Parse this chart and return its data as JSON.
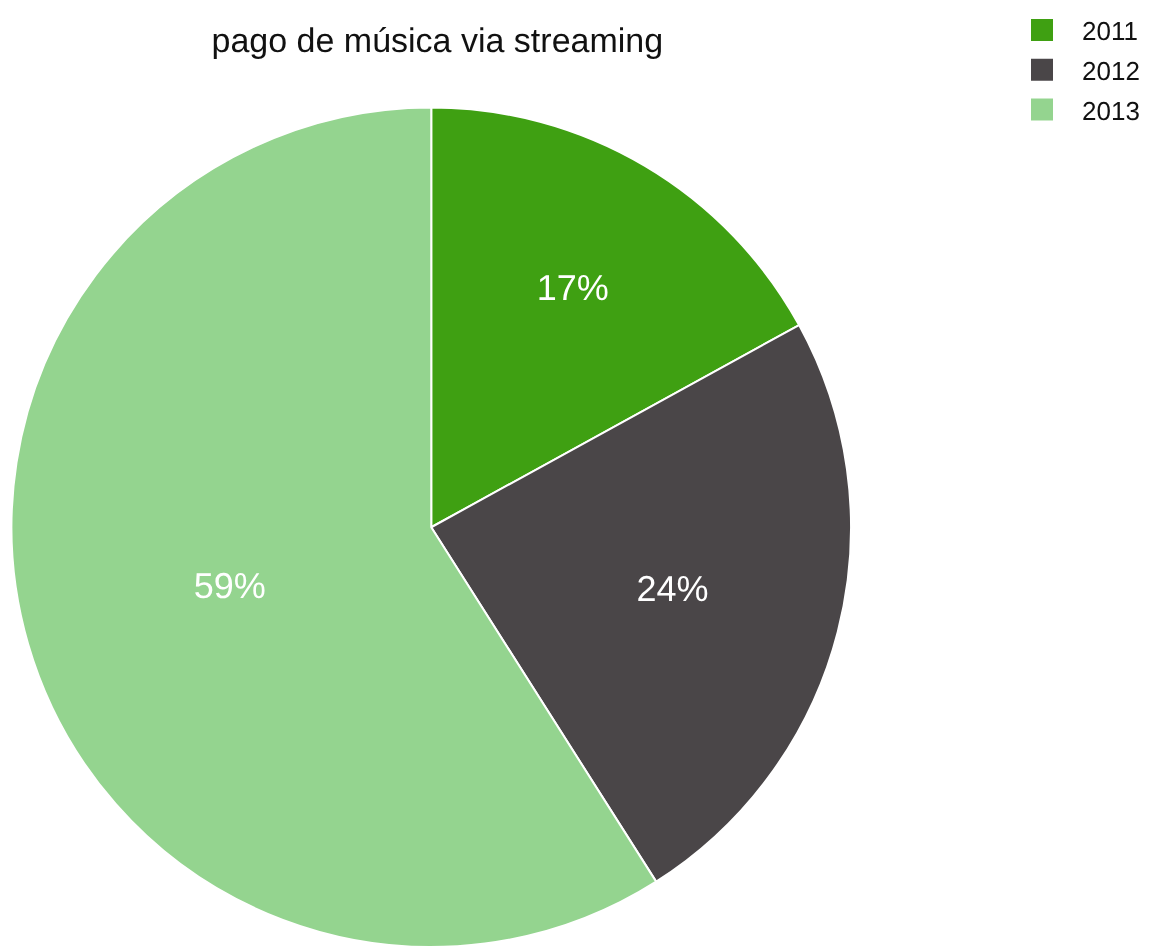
{
  "chart_data": {
    "type": "pie",
    "title": "pago de música via streaming",
    "categories": [
      "2011",
      "2012",
      "2013"
    ],
    "values": [
      17,
      24,
      59
    ],
    "colors": [
      "#3fa012",
      "#4a4648",
      "#94d48f"
    ],
    "value_labels": [
      "17%",
      "24%",
      "59%"
    ],
    "legend": "top right"
  }
}
